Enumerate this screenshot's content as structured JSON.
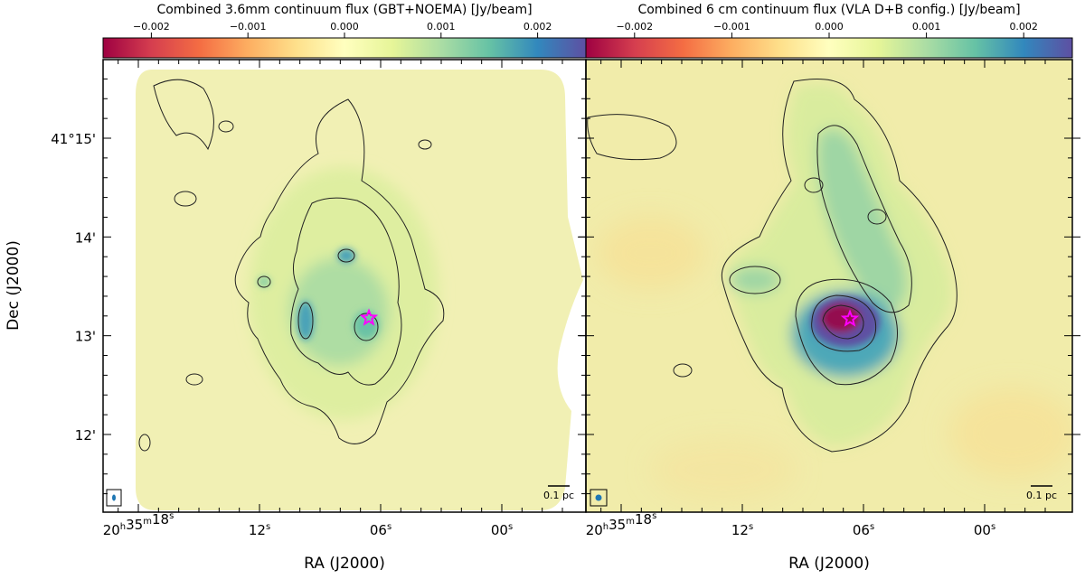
{
  "chart_data": [
    {
      "type": "heatmap",
      "panel": "left",
      "colorbar": {
        "title": "Combined 3.6mm continuum flux (GBT+NOEMA) [Jy/beam]",
        "ticks": [
          "−0.002",
          "−0.001",
          "0.000",
          "0.001",
          "0.002"
        ],
        "tick_values": [
          -0.002,
          -0.001,
          0.0,
          0.001,
          0.002
        ],
        "range": [
          -0.0025,
          0.0025
        ],
        "colormap": "Spectral_r"
      },
      "xlabel": "RA (J2000)",
      "ylabel": "Dec (J2000)",
      "xticks": [
        {
          "h": "20",
          "m": "35",
          "s": "18",
          "value_s": 18
        },
        {
          "s": "12",
          "value_s": 12
        },
        {
          "s": "06",
          "value_s": 6
        },
        {
          "s": "00",
          "value_s": 0
        }
      ],
      "yticks": [
        "41°15'",
        "14'",
        "13'",
        "12'"
      ],
      "ytick_values_arcmin": [
        15,
        14,
        13,
        12
      ],
      "scalebar_label": "0.1 pc",
      "marker": "star",
      "grid": false
    },
    {
      "type": "heatmap",
      "panel": "right",
      "colorbar": {
        "title": "Combined 6 cm continuum flux (VLA D+B config.) [Jy/beam]",
        "ticks": [
          "−0.002",
          "−0.001",
          "0.000",
          "0.001",
          "0.002"
        ],
        "tick_values": [
          -0.002,
          -0.001,
          0.0,
          0.001,
          0.002
        ],
        "range": [
          -0.0025,
          0.0025
        ],
        "colormap": "Spectral_r"
      },
      "xlabel": "RA (J2000)",
      "xticks": [
        {
          "h": "20",
          "m": "35",
          "s": "18",
          "value_s": 18
        },
        {
          "s": "12",
          "value_s": 12
        },
        {
          "s": "06",
          "value_s": 6
        },
        {
          "s": "00",
          "value_s": 0
        }
      ],
      "scalebar_label": "0.1 pc",
      "marker": "star",
      "grid": false
    }
  ],
  "colors": {
    "colormap_stops": [
      "#9e0142",
      "#d53e4f",
      "#f46d43",
      "#fdae61",
      "#fee08b",
      "#ffffbf",
      "#e6f598",
      "#abdda4",
      "#66c2a5",
      "#3288bd",
      "#5e4fa2"
    ],
    "background_level": "#f1f0b4",
    "marker": "#ff00ff",
    "beam": "#1f77b4",
    "contour": "#222222"
  }
}
